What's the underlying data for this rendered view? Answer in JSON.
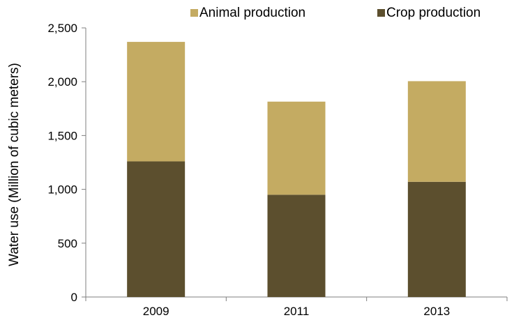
{
  "chart_data": {
    "type": "bar",
    "stacked": true,
    "categories": [
      "2009",
      "2011",
      "2013"
    ],
    "series": [
      {
        "name": "Crop production",
        "values": [
          1260,
          950,
          1070
        ],
        "color": "#5c4f2e"
      },
      {
        "name": "Animal production",
        "values": [
          1110,
          865,
          935
        ],
        "color": "#c4ab62"
      }
    ],
    "title": "",
    "xlabel": "",
    "ylabel": "Water use (Million of cubic meters)",
    "ylim": [
      0,
      2500
    ],
    "yticks": [
      0,
      500,
      1000,
      1500,
      2000,
      2500
    ],
    "ytick_labels": [
      "0",
      "500",
      "1,000",
      "1,500",
      "2,000",
      "2,500"
    ],
    "grid": false,
    "legend": {
      "position": "top",
      "entries": [
        "Animal production",
        "Crop production"
      ]
    }
  }
}
